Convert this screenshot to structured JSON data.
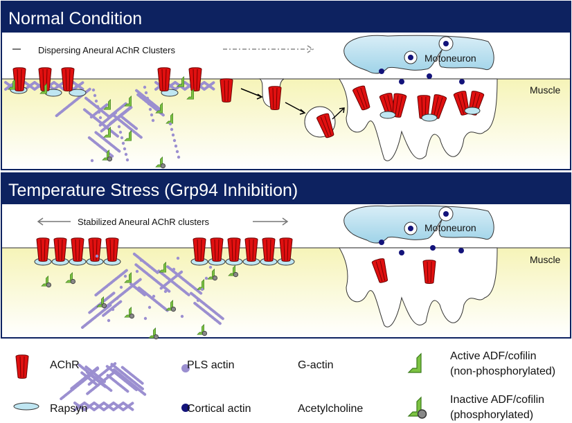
{
  "panels": [
    {
      "title": "Normal Condition",
      "caption": "Dispersing Aneural AChR Clusters",
      "neuron_label": "Motoneuron",
      "muscle_label": "Muscle"
    },
    {
      "title": "Temperature Stress (Grp94 Inhibition)",
      "caption": "Stabilized Aneural AChR clusters",
      "neuron_label": "Motoneuron",
      "muscle_label": "Muscle"
    }
  ],
  "legend": [
    {
      "label": "AChR",
      "icon": "achr-icon"
    },
    {
      "label": "PLS actin",
      "icon": "pls-actin-icon"
    },
    {
      "label": "G-actin",
      "icon": "g-actin-icon"
    },
    {
      "label": "Active ADF/cofilin",
      "label2": "(non-phosphorylated)",
      "icon": "active-cofilin-icon"
    },
    {
      "label": "Rapsyn",
      "icon": "rapsyn-icon"
    },
    {
      "label": "Cortical actin",
      "icon": "cortical-actin-icon"
    },
    {
      "label": "Acetylcholine",
      "icon": "acetylcholine-icon"
    },
    {
      "label": "Inactive ADF/cofilin",
      "label2": "(phosphorylated)",
      "icon": "inactive-cofilin-icon"
    }
  ],
  "colors": {
    "header": "#0d2260",
    "achr": "#e01010",
    "muscle": "#fbfbd2",
    "neuron": "#a9d8ea",
    "actin": "#9b8fd0",
    "ach": "#13137a",
    "cofilin": "#7cc242",
    "rapsyn": "#bfe6f2"
  }
}
